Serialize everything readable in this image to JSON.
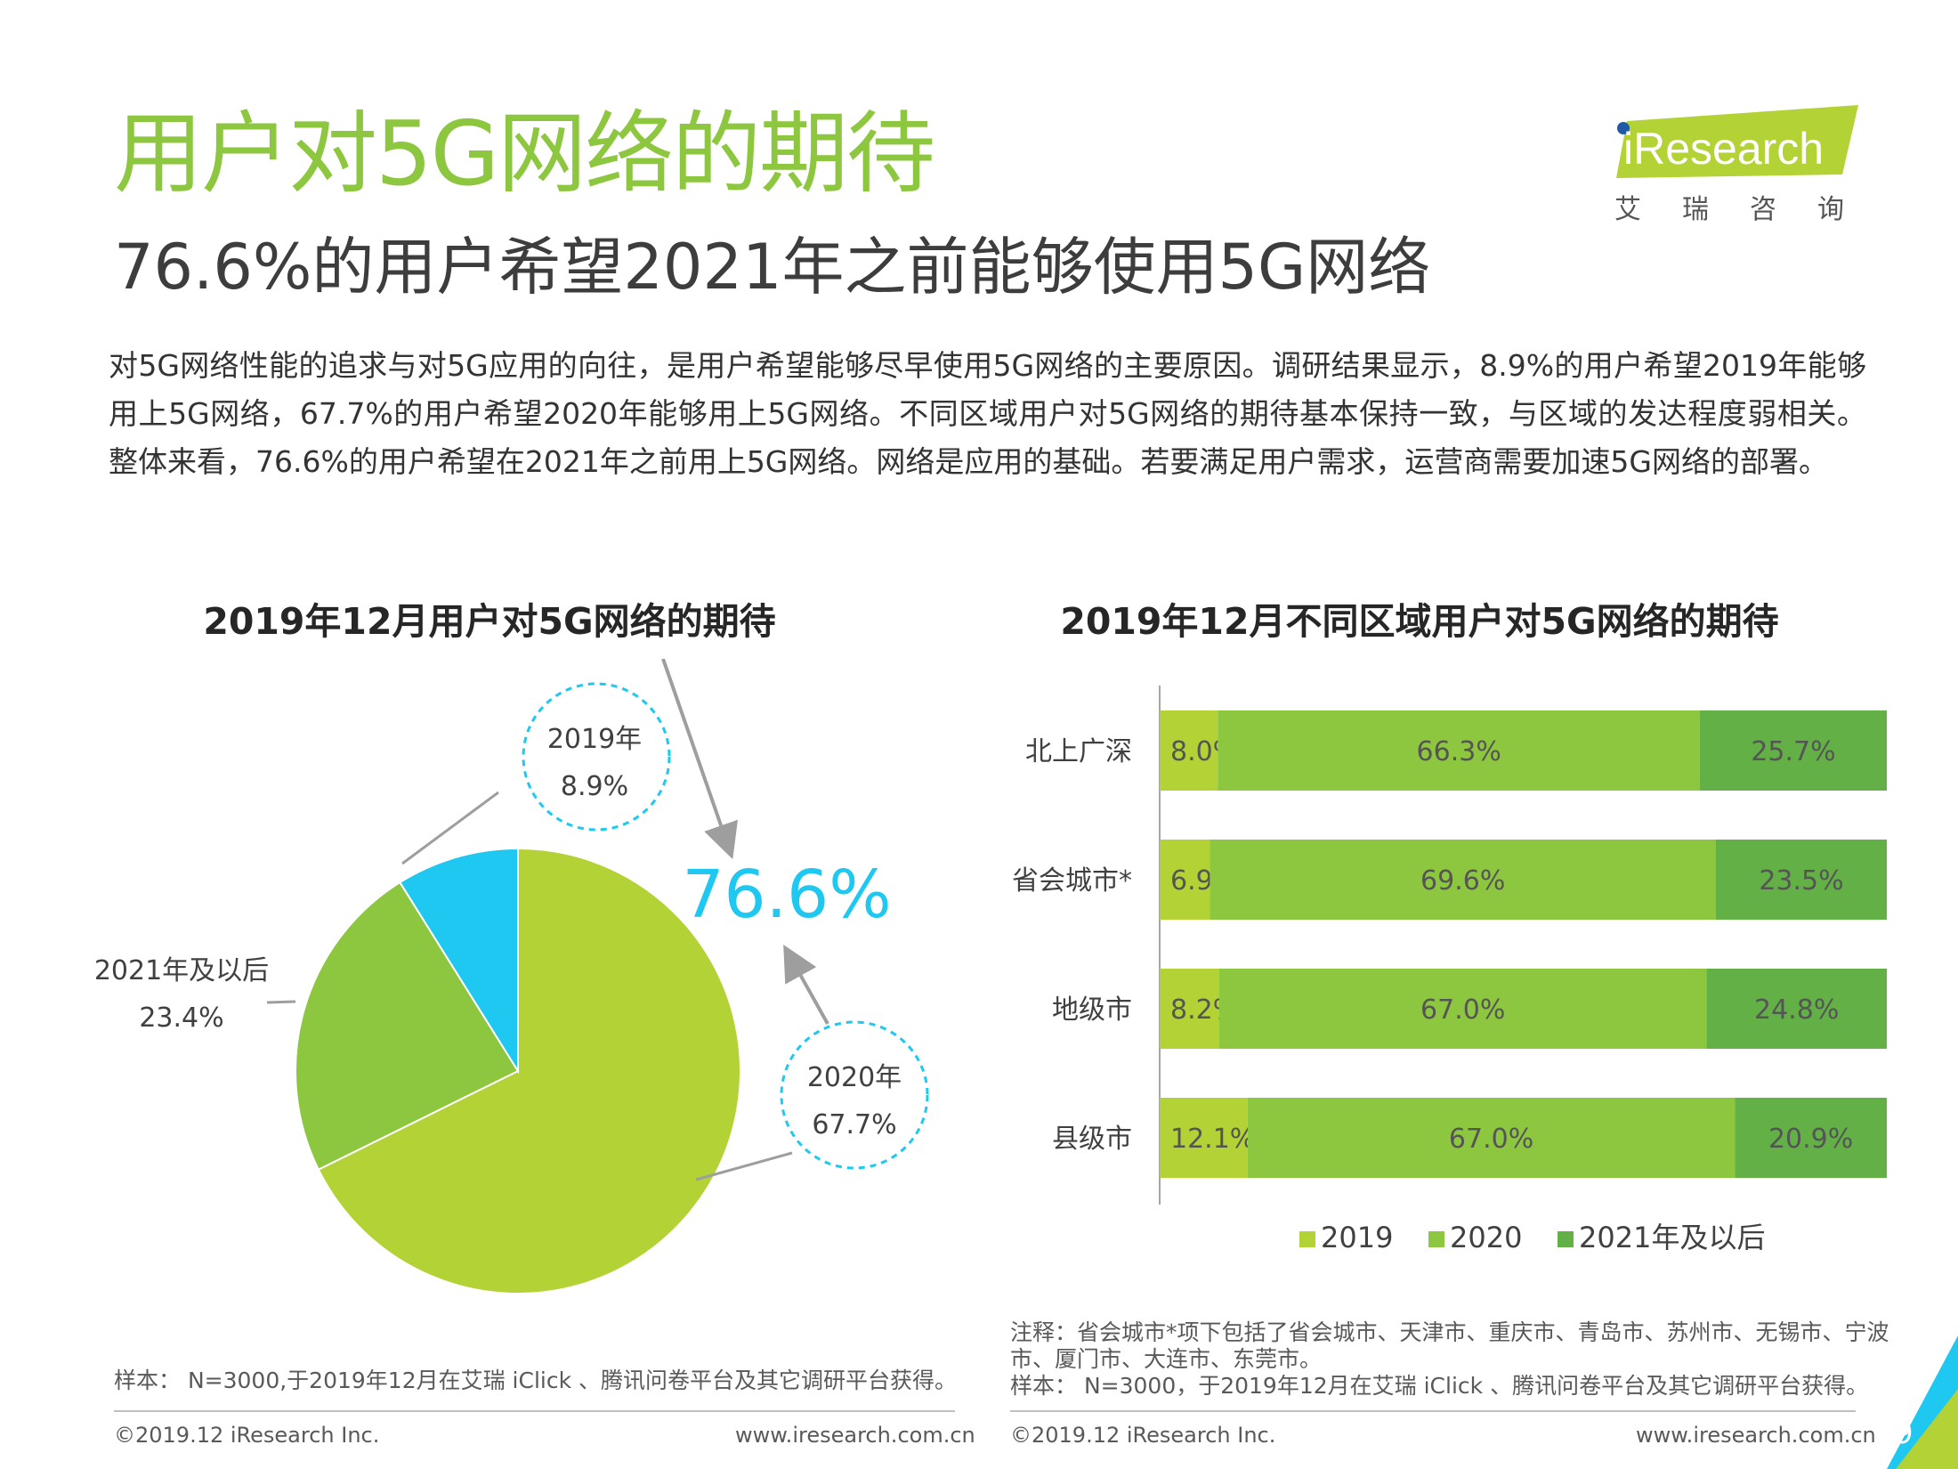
{
  "header": {
    "title": "用户对5G网络的期待",
    "subtitle": "76.6%的用户希望2021年之前能够使用5G网络",
    "body": "对5G网络性能的追求与对5G应用的向往，是用户希望能够尽早使用5G网络的主要原因。调研结果显示，8.9%的用户希望2019年能够用上5G网络，67.7%的用户希望2020年能够用上5G网络。不同区域用户对5G网络的期待基本保持一致，与区域的发达程度弱相关。整体来看，76.6%的用户希望在2021年之前用上5G网络。网络是应用的基础。若要满足用户需求，运营商需要加速5G网络的部署。"
  },
  "logo": {
    "word": "iResearch",
    "cn": "艾瑞咨询"
  },
  "colors": {
    "c2019": "#b2d235",
    "c2020": "#8dc63f",
    "c2021": "#62b046",
    "pie2019": "#1ec8f0",
    "pie2020": "#b2d235",
    "pie2021": "#8dc63f",
    "accent_title": "#8dc63f",
    "callout": "#1ec8f0"
  },
  "chart_data": [
    {
      "type": "pie",
      "title": "2019年12月用户对5G网络的期待",
      "slices": [
        {
          "label": "2019年",
          "value": 8.9,
          "value_label": "8.9%"
        },
        {
          "label": "2020年",
          "value": 67.7,
          "value_label": "67.7%"
        },
        {
          "label": "2021年及以后",
          "value": 23.4,
          "value_label": "23.4%"
        }
      ],
      "highlight": "76.6%"
    },
    {
      "type": "bar",
      "orientation": "horizontal",
      "stacked": true,
      "title": "2019年12月不同区域用户对5G网络的期待",
      "categories": [
        "北上广深",
        "省会城市*",
        "地级市",
        "县级市"
      ],
      "series": [
        {
          "name": "2019",
          "values": [
            8.0,
            6.9,
            8.2,
            12.1
          ]
        },
        {
          "name": "2020",
          "values": [
            66.3,
            69.6,
            67.0,
            67.0
          ]
        },
        {
          "name": "2021年及以后",
          "values": [
            25.7,
            23.5,
            24.8,
            20.9
          ]
        }
      ],
      "xlim": [
        0,
        100
      ],
      "legend": "bottom"
    }
  ],
  "notes": {
    "left": "样本： N=3000,于2019年12月在艾瑞 iClick 、腾讯问卷平台及其它调研平台获得。",
    "right_1": "注释：省会城市*项下包括了省会城市、天津市、重庆市、青岛市、苏州市、无锡市、宁波市、厦门市、大连市、东莞市。",
    "right_2": "样本： N=3000，于2019年12月在艾瑞 iClick 、腾讯问卷平台及其它调研平台获得。"
  },
  "footer": {
    "copyright": "©2019.12 iResearch Inc.",
    "url": "www.iresearch.com.cn",
    "page": "9"
  }
}
